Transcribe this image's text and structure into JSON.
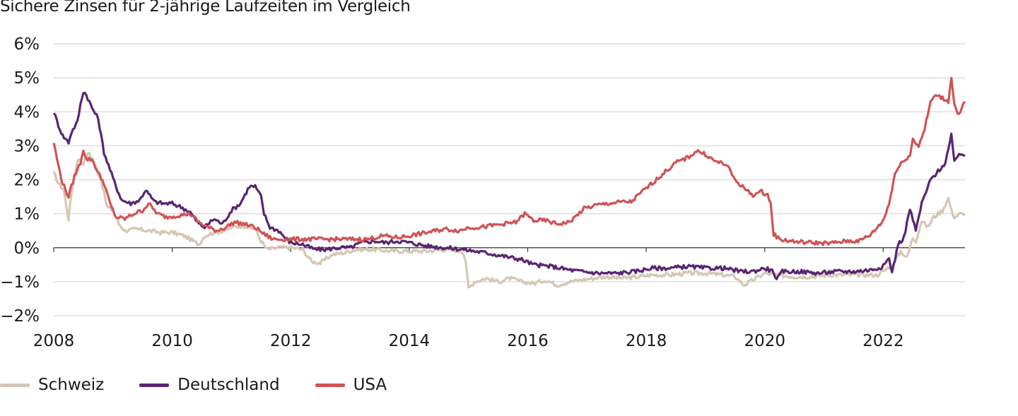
{
  "chart_data": {
    "type": "line",
    "title": "Sichere Zinsen für 2-jährige Laufzeiten im Vergleich",
    "xlabel": "",
    "ylabel": "",
    "xlim": [
      2008.0,
      2023.38
    ],
    "ylim": [
      -2,
      6
    ],
    "x_ticks": [
      2008,
      2010,
      2012,
      2014,
      2016,
      2018,
      2020,
      2022
    ],
    "x_tick_labels": [
      "2008",
      "2010",
      "2012",
      "2014",
      "2016",
      "2018",
      "2020",
      "2022"
    ],
    "y_ticks": [
      6,
      5,
      4,
      3,
      2,
      1,
      0,
      -1,
      -2
    ],
    "y_tick_labels": [
      "6%",
      "5%",
      "4%",
      "3%",
      "2%",
      "1%",
      "0%",
      "−1%",
      "−2%"
    ],
    "grid": "horizontal",
    "legend_position": "bottom-left",
    "series": [
      {
        "name": "Schweiz",
        "color": "#d5c7b4",
        "points": [
          [
            2008.0,
            2.2
          ],
          [
            2008.08,
            1.9
          ],
          [
            2008.17,
            1.7
          ],
          [
            2008.25,
            0.85
          ],
          [
            2008.3,
            1.6
          ],
          [
            2008.4,
            2.6
          ],
          [
            2008.5,
            2.5
          ],
          [
            2008.6,
            2.8
          ],
          [
            2008.7,
            2.4
          ],
          [
            2008.8,
            2.0
          ],
          [
            2008.9,
            1.2
          ],
          [
            2009.0,
            1.1
          ],
          [
            2009.1,
            0.7
          ],
          [
            2009.2,
            0.5
          ],
          [
            2009.4,
            0.55
          ],
          [
            2009.6,
            0.5
          ],
          [
            2009.8,
            0.45
          ],
          [
            2010.0,
            0.45
          ],
          [
            2010.2,
            0.35
          ],
          [
            2010.3,
            0.25
          ],
          [
            2010.45,
            0.1
          ],
          [
            2010.55,
            0.35
          ],
          [
            2010.7,
            0.45
          ],
          [
            2010.9,
            0.5
          ],
          [
            2011.0,
            0.6
          ],
          [
            2011.2,
            0.65
          ],
          [
            2011.4,
            0.55
          ],
          [
            2011.5,
            0.2
          ],
          [
            2011.6,
            -0.05
          ],
          [
            2011.8,
            0.0
          ],
          [
            2012.0,
            0.0
          ],
          [
            2012.2,
            -0.05
          ],
          [
            2012.35,
            -0.4
          ],
          [
            2012.5,
            -0.45
          ],
          [
            2012.7,
            -0.2
          ],
          [
            2012.9,
            -0.15
          ],
          [
            2013.1,
            -0.05
          ],
          [
            2013.4,
            -0.05
          ],
          [
            2013.7,
            -0.1
          ],
          [
            2014.0,
            -0.1
          ],
          [
            2014.3,
            -0.1
          ],
          [
            2014.6,
            -0.05
          ],
          [
            2014.9,
            -0.1
          ],
          [
            2014.95,
            -0.35
          ],
          [
            2015.0,
            -1.2
          ],
          [
            2015.1,
            -1.0
          ],
          [
            2015.3,
            -0.9
          ],
          [
            2015.5,
            -1.0
          ],
          [
            2015.7,
            -0.9
          ],
          [
            2015.9,
            -1.0
          ],
          [
            2016.1,
            -1.05
          ],
          [
            2016.3,
            -0.95
          ],
          [
            2016.5,
            -1.1
          ],
          [
            2016.7,
            -1.0
          ],
          [
            2016.9,
            -0.95
          ],
          [
            2017.1,
            -0.9
          ],
          [
            2017.3,
            -0.85
          ],
          [
            2017.6,
            -0.9
          ],
          [
            2017.9,
            -0.85
          ],
          [
            2018.1,
            -0.8
          ],
          [
            2018.4,
            -0.8
          ],
          [
            2018.7,
            -0.75
          ],
          [
            2019.0,
            -0.75
          ],
          [
            2019.3,
            -0.8
          ],
          [
            2019.5,
            -0.85
          ],
          [
            2019.65,
            -1.1
          ],
          [
            2019.8,
            -0.95
          ],
          [
            2020.0,
            -0.75
          ],
          [
            2020.2,
            -0.8
          ],
          [
            2020.5,
            -0.85
          ],
          [
            2020.8,
            -0.85
          ],
          [
            2021.1,
            -0.8
          ],
          [
            2021.4,
            -0.8
          ],
          [
            2021.7,
            -0.8
          ],
          [
            2021.9,
            -0.8
          ],
          [
            2022.0,
            -0.7
          ],
          [
            2022.15,
            -0.5
          ],
          [
            2022.3,
            -0.1
          ],
          [
            2022.4,
            -0.3
          ],
          [
            2022.5,
            0.3
          ],
          [
            2022.55,
            0.2
          ],
          [
            2022.65,
            0.8
          ],
          [
            2022.75,
            0.6
          ],
          [
            2022.85,
            0.9
          ],
          [
            2023.0,
            1.1
          ],
          [
            2023.1,
            1.45
          ],
          [
            2023.15,
            1.1
          ],
          [
            2023.2,
            0.9
          ],
          [
            2023.3,
            1.0
          ],
          [
            2023.38,
            0.95
          ]
        ]
      },
      {
        "name": "Deutschland",
        "color": "#5a2572",
        "points": [
          [
            2008.0,
            4.0
          ],
          [
            2008.08,
            3.6
          ],
          [
            2008.15,
            3.3
          ],
          [
            2008.25,
            3.1
          ],
          [
            2008.3,
            3.4
          ],
          [
            2008.4,
            3.7
          ],
          [
            2008.45,
            4.2
          ],
          [
            2008.5,
            4.6
          ],
          [
            2008.55,
            4.5
          ],
          [
            2008.65,
            4.1
          ],
          [
            2008.75,
            3.8
          ],
          [
            2008.85,
            2.8
          ],
          [
            2008.95,
            2.3
          ],
          [
            2009.05,
            1.8
          ],
          [
            2009.15,
            1.4
          ],
          [
            2009.3,
            1.3
          ],
          [
            2009.45,
            1.4
          ],
          [
            2009.55,
            1.7
          ],
          [
            2009.7,
            1.35
          ],
          [
            2009.85,
            1.3
          ],
          [
            2010.0,
            1.3
          ],
          [
            2010.15,
            1.2
          ],
          [
            2010.3,
            1.05
          ],
          [
            2010.45,
            0.7
          ],
          [
            2010.55,
            0.6
          ],
          [
            2010.7,
            0.85
          ],
          [
            2010.85,
            0.7
          ],
          [
            2011.0,
            1.1
          ],
          [
            2011.15,
            1.3
          ],
          [
            2011.3,
            1.8
          ],
          [
            2011.4,
            1.8
          ],
          [
            2011.5,
            1.5
          ],
          [
            2011.55,
            1.0
          ],
          [
            2011.65,
            0.6
          ],
          [
            2011.8,
            0.5
          ],
          [
            2011.9,
            0.3
          ],
          [
            2012.0,
            0.15
          ],
          [
            2012.2,
            0.1
          ],
          [
            2012.4,
            -0.05
          ],
          [
            2012.6,
            -0.05
          ],
          [
            2012.8,
            0.0
          ],
          [
            2013.0,
            0.0
          ],
          [
            2013.2,
            0.15
          ],
          [
            2013.4,
            0.2
          ],
          [
            2013.6,
            0.15
          ],
          [
            2013.8,
            0.2
          ],
          [
            2014.0,
            0.15
          ],
          [
            2014.3,
            0.05
          ],
          [
            2014.6,
            0.0
          ],
          [
            2014.9,
            -0.05
          ],
          [
            2015.1,
            -0.1
          ],
          [
            2015.3,
            -0.15
          ],
          [
            2015.6,
            -0.25
          ],
          [
            2015.9,
            -0.35
          ],
          [
            2016.1,
            -0.5
          ],
          [
            2016.4,
            -0.55
          ],
          [
            2016.7,
            -0.65
          ],
          [
            2016.9,
            -0.7
          ],
          [
            2017.2,
            -0.75
          ],
          [
            2017.5,
            -0.75
          ],
          [
            2017.8,
            -0.7
          ],
          [
            2018.1,
            -0.6
          ],
          [
            2018.4,
            -0.6
          ],
          [
            2018.7,
            -0.55
          ],
          [
            2019.0,
            -0.6
          ],
          [
            2019.3,
            -0.6
          ],
          [
            2019.6,
            -0.7
          ],
          [
            2019.8,
            -0.7
          ],
          [
            2020.0,
            -0.6
          ],
          [
            2020.15,
            -0.7
          ],
          [
            2020.2,
            -0.95
          ],
          [
            2020.3,
            -0.7
          ],
          [
            2020.6,
            -0.7
          ],
          [
            2020.9,
            -0.75
          ],
          [
            2021.2,
            -0.7
          ],
          [
            2021.5,
            -0.7
          ],
          [
            2021.8,
            -0.65
          ],
          [
            2022.0,
            -0.55
          ],
          [
            2022.1,
            -0.3
          ],
          [
            2022.15,
            -0.75
          ],
          [
            2022.25,
            0.1
          ],
          [
            2022.35,
            0.3
          ],
          [
            2022.45,
            1.15
          ],
          [
            2022.55,
            0.5
          ],
          [
            2022.65,
            1.3
          ],
          [
            2022.8,
            2.0
          ],
          [
            2022.95,
            2.3
          ],
          [
            2023.05,
            2.5
          ],
          [
            2023.15,
            3.3
          ],
          [
            2023.2,
            2.5
          ],
          [
            2023.28,
            2.8
          ],
          [
            2023.38,
            2.7
          ]
        ]
      },
      {
        "name": "USA",
        "color": "#d05355",
        "points": [
          [
            2008.0,
            3.1
          ],
          [
            2008.08,
            2.4
          ],
          [
            2008.15,
            1.9
          ],
          [
            2008.25,
            1.5
          ],
          [
            2008.35,
            2.1
          ],
          [
            2008.45,
            2.5
          ],
          [
            2008.5,
            2.9
          ],
          [
            2008.55,
            2.6
          ],
          [
            2008.65,
            2.6
          ],
          [
            2008.75,
            2.2
          ],
          [
            2008.85,
            1.9
          ],
          [
            2008.95,
            1.3
          ],
          [
            2009.05,
            0.9
          ],
          [
            2009.2,
            0.85
          ],
          [
            2009.35,
            1.0
          ],
          [
            2009.5,
            1.1
          ],
          [
            2009.6,
            1.3
          ],
          [
            2009.75,
            1.0
          ],
          [
            2009.9,
            0.9
          ],
          [
            2010.1,
            0.95
          ],
          [
            2010.3,
            1.0
          ],
          [
            2010.45,
            0.75
          ],
          [
            2010.6,
            0.6
          ],
          [
            2010.75,
            0.5
          ],
          [
            2010.9,
            0.6
          ],
          [
            2011.05,
            0.75
          ],
          [
            2011.2,
            0.7
          ],
          [
            2011.4,
            0.6
          ],
          [
            2011.55,
            0.4
          ],
          [
            2011.7,
            0.25
          ],
          [
            2011.9,
            0.25
          ],
          [
            2012.1,
            0.25
          ],
          [
            2012.4,
            0.25
          ],
          [
            2012.7,
            0.25
          ],
          [
            2013.0,
            0.25
          ],
          [
            2013.3,
            0.25
          ],
          [
            2013.55,
            0.35
          ],
          [
            2013.8,
            0.3
          ],
          [
            2014.0,
            0.35
          ],
          [
            2014.3,
            0.45
          ],
          [
            2014.6,
            0.55
          ],
          [
            2014.85,
            0.5
          ],
          [
            2015.0,
            0.6
          ],
          [
            2015.2,
            0.6
          ],
          [
            2015.4,
            0.65
          ],
          [
            2015.6,
            0.7
          ],
          [
            2015.8,
            0.75
          ],
          [
            2015.95,
            1.0
          ],
          [
            2016.1,
            0.8
          ],
          [
            2016.3,
            0.8
          ],
          [
            2016.5,
            0.7
          ],
          [
            2016.7,
            0.75
          ],
          [
            2016.8,
            0.9
          ],
          [
            2016.95,
            1.15
          ],
          [
            2017.15,
            1.25
          ],
          [
            2017.35,
            1.3
          ],
          [
            2017.6,
            1.35
          ],
          [
            2017.75,
            1.35
          ],
          [
            2017.9,
            1.6
          ],
          [
            2018.1,
            1.9
          ],
          [
            2018.3,
            2.2
          ],
          [
            2018.5,
            2.5
          ],
          [
            2018.7,
            2.65
          ],
          [
            2018.85,
            2.85
          ],
          [
            2019.0,
            2.75
          ],
          [
            2019.15,
            2.55
          ],
          [
            2019.35,
            2.45
          ],
          [
            2019.5,
            2.0
          ],
          [
            2019.65,
            1.75
          ],
          [
            2019.8,
            1.55
          ],
          [
            2019.95,
            1.65
          ],
          [
            2020.05,
            1.55
          ],
          [
            2020.1,
            1.3
          ],
          [
            2020.15,
            0.4
          ],
          [
            2020.25,
            0.25
          ],
          [
            2020.5,
            0.18
          ],
          [
            2020.8,
            0.15
          ],
          [
            2021.1,
            0.13
          ],
          [
            2021.4,
            0.2
          ],
          [
            2021.6,
            0.2
          ],
          [
            2021.8,
            0.4
          ],
          [
            2022.0,
            0.8
          ],
          [
            2022.1,
            1.3
          ],
          [
            2022.2,
            2.2
          ],
          [
            2022.35,
            2.6
          ],
          [
            2022.45,
            2.7
          ],
          [
            2022.5,
            3.2
          ],
          [
            2022.6,
            3.0
          ],
          [
            2022.7,
            3.5
          ],
          [
            2022.8,
            4.3
          ],
          [
            2022.9,
            4.5
          ],
          [
            2023.0,
            4.4
          ],
          [
            2023.1,
            4.3
          ],
          [
            2023.15,
            5.05
          ],
          [
            2023.2,
            4.2
          ],
          [
            2023.28,
            3.9
          ],
          [
            2023.38,
            4.3
          ]
        ]
      }
    ]
  }
}
